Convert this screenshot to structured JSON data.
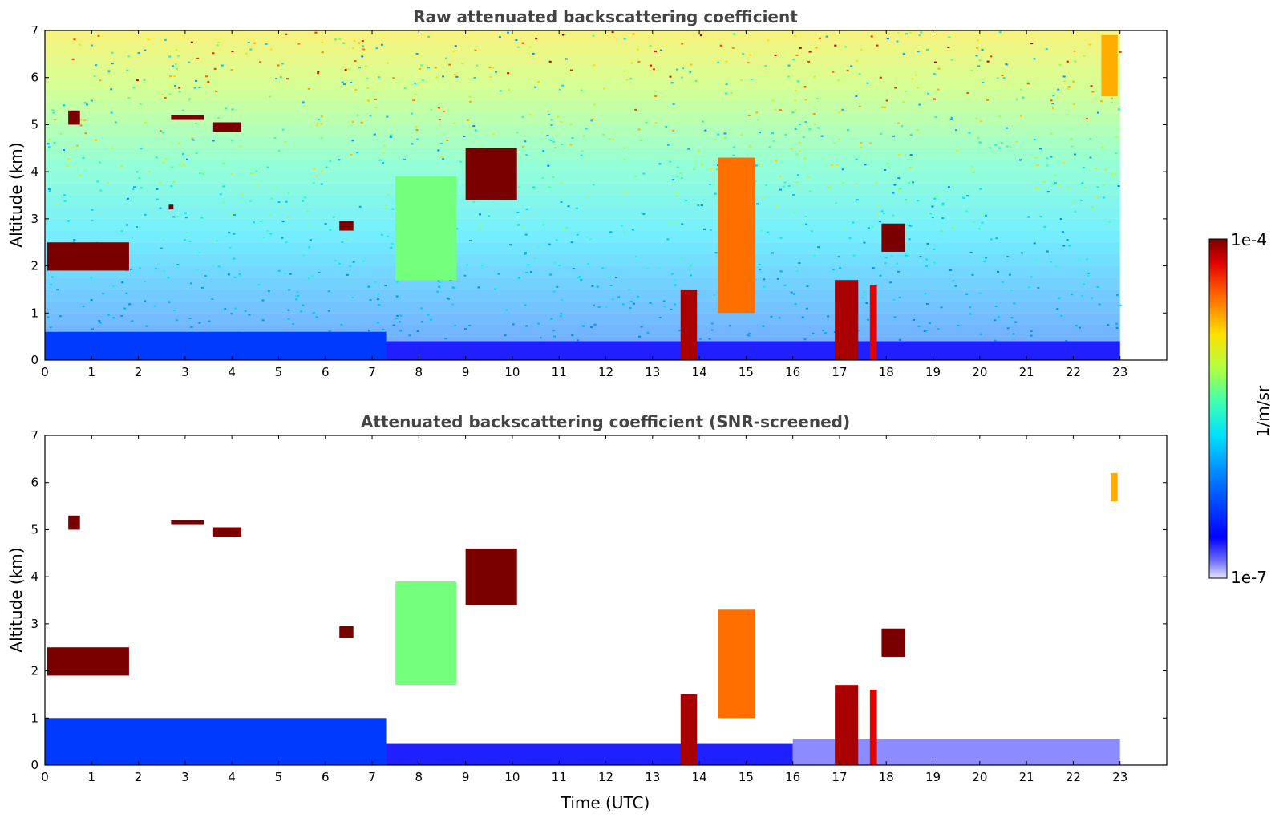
{
  "chart_data": [
    {
      "type": "heatmap",
      "title": "Raw attenuated backscattering coefficient",
      "xlabel": "",
      "ylabel": "Altitude (km)",
      "xlim": [
        0,
        24
      ],
      "ylim": [
        0,
        7
      ],
      "x_ticks": [
        "0",
        "1",
        "2",
        "3",
        "4",
        "5",
        "6",
        "7",
        "8",
        "9",
        "10",
        "11",
        "12",
        "13",
        "14",
        "15",
        "16",
        "17",
        "18",
        "19",
        "20",
        "21",
        "22",
        "23"
      ],
      "y_ticks": [
        "0",
        "1",
        "2",
        "3",
        "4",
        "5",
        "6",
        "7"
      ],
      "data_extent_x": [
        0,
        23
      ],
      "colorscale": "log",
      "cbar_range": [
        "1e-7",
        "1e-4"
      ],
      "features": [
        {
          "kind": "near-surface layer",
          "x": [
            0,
            7.3
          ],
          "y": [
            0,
            0.6
          ],
          "value": "4e-7"
        },
        {
          "kind": "near-surface layer",
          "x": [
            7.3,
            23
          ],
          "y": [
            0,
            0.4
          ],
          "value": "2e-7"
        },
        {
          "kind": "cloud",
          "x": [
            0.05,
            1.8
          ],
          "y": [
            1.9,
            2.5
          ],
          "value": "1e-4"
        },
        {
          "kind": "cloud",
          "x": [
            0.5,
            0.75
          ],
          "y": [
            5.0,
            5.3
          ],
          "value": "1e-4"
        },
        {
          "kind": "cloud",
          "x": [
            2.7,
            3.4
          ],
          "y": [
            5.1,
            5.2
          ],
          "value": "1e-4"
        },
        {
          "kind": "cloud",
          "x": [
            3.6,
            4.2
          ],
          "y": [
            4.85,
            5.05
          ],
          "value": "1e-4"
        },
        {
          "kind": "cloud",
          "x": [
            2.65,
            2.75
          ],
          "y": [
            3.2,
            3.3
          ],
          "value": "1e-4"
        },
        {
          "kind": "cloud",
          "x": [
            6.3,
            6.6
          ],
          "y": [
            2.75,
            2.95
          ],
          "value": "1e-4"
        },
        {
          "kind": "aerosol plume",
          "x": [
            7.5,
            8.8
          ],
          "y": [
            1.7,
            3.9
          ],
          "value": "5e-6"
        },
        {
          "kind": "cloud",
          "x": [
            9.0,
            10.1
          ],
          "y": [
            3.4,
            4.5
          ],
          "value": "1e-4"
        },
        {
          "kind": "rain/cloud column",
          "x": [
            13.6,
            13.95
          ],
          "y": [
            0,
            1.5
          ],
          "value": "8e-5"
        },
        {
          "kind": "cloud",
          "x": [
            14.4,
            15.2
          ],
          "y": [
            1.0,
            4.3
          ],
          "value": "3e-5"
        },
        {
          "kind": "rain/cloud column",
          "x": [
            16.9,
            17.4
          ],
          "y": [
            0,
            1.7
          ],
          "value": "8e-5"
        },
        {
          "kind": "rain/cloud column",
          "x": [
            17.65,
            17.8
          ],
          "y": [
            0,
            1.6
          ],
          "value": "6e-5"
        },
        {
          "kind": "cloud",
          "x": [
            17.9,
            18.4
          ],
          "y": [
            2.3,
            2.9
          ],
          "value": "1e-4"
        },
        {
          "kind": "cloud",
          "x": [
            22.6,
            22.95
          ],
          "y": [
            5.6,
            6.9
          ],
          "value": "2e-5"
        }
      ]
    },
    {
      "type": "heatmap",
      "title": "Attenuated backscattering coefficient (SNR-screened)",
      "xlabel": "Time (UTC)",
      "ylabel": "Altitude (km)",
      "xlim": [
        0,
        24
      ],
      "ylim": [
        0,
        7
      ],
      "x_ticks": [
        "0",
        "1",
        "2",
        "3",
        "4",
        "5",
        "6",
        "7",
        "8",
        "9",
        "10",
        "11",
        "12",
        "13",
        "14",
        "15",
        "16",
        "17",
        "18",
        "19",
        "20",
        "21",
        "22",
        "23"
      ],
      "y_ticks": [
        "0",
        "1",
        "2",
        "3",
        "4",
        "5",
        "6",
        "7"
      ],
      "data_extent_x": [
        0,
        23
      ],
      "colorscale": "log",
      "cbar_range": [
        "1e-7",
        "1e-4"
      ],
      "features": [
        {
          "kind": "boundary layer",
          "x": [
            0,
            7.3
          ],
          "y": [
            0,
            1.0
          ],
          "value": "4e-7"
        },
        {
          "kind": "boundary layer",
          "x": [
            7.3,
            16.0
          ],
          "y": [
            0,
            0.45
          ],
          "value": "2e-7"
        },
        {
          "kind": "boundary layer",
          "x": [
            16.0,
            23
          ],
          "y": [
            0,
            0.55
          ],
          "value": "1.3e-7"
        },
        {
          "kind": "cloud",
          "x": [
            0.05,
            1.8
          ],
          "y": [
            1.9,
            2.5
          ],
          "value": "1e-4"
        },
        {
          "kind": "cloud",
          "x": [
            0.5,
            0.75
          ],
          "y": [
            5.0,
            5.3
          ],
          "value": "1e-4"
        },
        {
          "kind": "cloud",
          "x": [
            2.7,
            3.4
          ],
          "y": [
            5.1,
            5.2
          ],
          "value": "1e-4"
        },
        {
          "kind": "cloud",
          "x": [
            3.6,
            4.2
          ],
          "y": [
            4.85,
            5.05
          ],
          "value": "1e-4"
        },
        {
          "kind": "cloud",
          "x": [
            6.3,
            6.6
          ],
          "y": [
            2.7,
            2.95
          ],
          "value": "1e-4"
        },
        {
          "kind": "aerosol plume",
          "x": [
            7.5,
            8.8
          ],
          "y": [
            1.7,
            3.9
          ],
          "value": "5e-6"
        },
        {
          "kind": "cloud",
          "x": [
            9.0,
            10.1
          ],
          "y": [
            3.4,
            4.6
          ],
          "value": "1e-4"
        },
        {
          "kind": "rain/cloud column",
          "x": [
            13.6,
            13.95
          ],
          "y": [
            0,
            1.5
          ],
          "value": "8e-5"
        },
        {
          "kind": "cloud",
          "x": [
            14.4,
            15.2
          ],
          "y": [
            1.0,
            3.3
          ],
          "value": "3e-5"
        },
        {
          "kind": "rain/cloud column",
          "x": [
            16.9,
            17.4
          ],
          "y": [
            0,
            1.7
          ],
          "value": "8e-5"
        },
        {
          "kind": "rain/cloud column",
          "x": [
            17.65,
            17.8
          ],
          "y": [
            0,
            1.6
          ],
          "value": "6e-5"
        },
        {
          "kind": "cloud",
          "x": [
            17.9,
            18.4
          ],
          "y": [
            2.3,
            2.9
          ],
          "value": "1e-4"
        },
        {
          "kind": "cloud",
          "x": [
            22.8,
            22.95
          ],
          "y": [
            5.6,
            6.2
          ],
          "value": "2e-5"
        }
      ]
    }
  ],
  "colorbar": {
    "label": "1/m/sr",
    "max_label": "1e-4",
    "min_label": "1e-7",
    "colormap": "jet"
  },
  "colors": {
    "axis": "#000000",
    "title": "#444444",
    "background": "#ffffff"
  }
}
